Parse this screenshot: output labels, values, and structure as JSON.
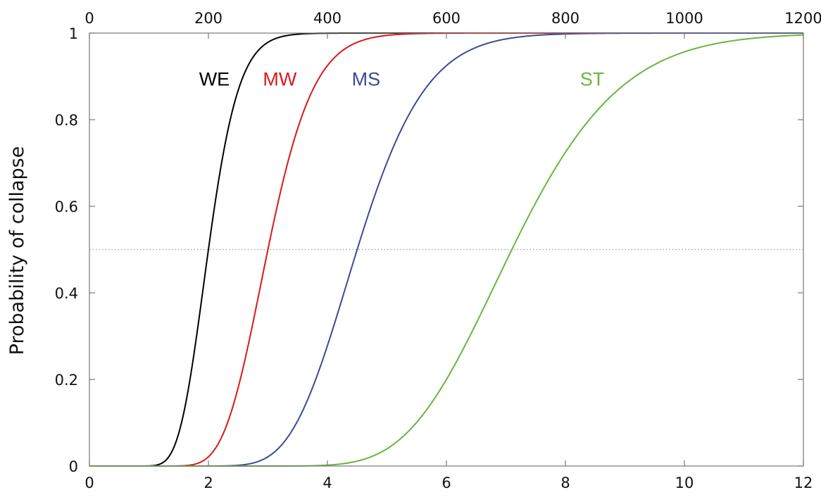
{
  "chart_data": {
    "type": "line",
    "title": "",
    "xlabel": "",
    "ylabel": "Probability of collapse",
    "x_bottom": {
      "lim": [
        0,
        12
      ],
      "ticks": [
        0,
        2,
        4,
        6,
        8,
        10,
        12
      ],
      "tick_labels": [
        "0",
        "2",
        "4",
        "6",
        "8",
        "10",
        "12"
      ]
    },
    "x_top": {
      "lim": [
        0,
        1200
      ],
      "ticks": [
        0,
        200,
        400,
        600,
        800,
        1000,
        1200
      ],
      "tick_labels": [
        "0",
        "200",
        "400",
        "600",
        "800",
        "1000",
        "1200"
      ]
    },
    "ylim": [
      0,
      1
    ],
    "y_ticks": [
      0,
      0.2,
      0.4,
      0.6,
      0.8,
      1
    ],
    "y_tick_labels": [
      "0",
      "0.2",
      "0.4",
      "0.6",
      "0.8",
      "1"
    ],
    "grid": false,
    "reference_line": {
      "y": 0.5,
      "style": "dotted",
      "color": "#999999"
    },
    "series": [
      {
        "name": "WE",
        "color": "#000000",
        "median": 2.0,
        "spread": 0.2
      },
      {
        "name": "MW",
        "color": "#d7191c",
        "median": 3.0,
        "spread": 0.2
      },
      {
        "name": "MS",
        "color": "#3c4a96",
        "median": 4.5,
        "spread": 0.2
      },
      {
        "name": "ST",
        "color": "#6db33f",
        "median": 7.1,
        "spread": 0.2
      }
    ],
    "series_label_positions": [
      {
        "name": "WE",
        "x": 2.1,
        "y": 0.895
      },
      {
        "name": "MW",
        "x": 3.2,
        "y": 0.895
      },
      {
        "name": "MS",
        "x": 4.65,
        "y": 0.895
      },
      {
        "name": "ST",
        "x": 8.45,
        "y": 0.895
      }
    ]
  }
}
